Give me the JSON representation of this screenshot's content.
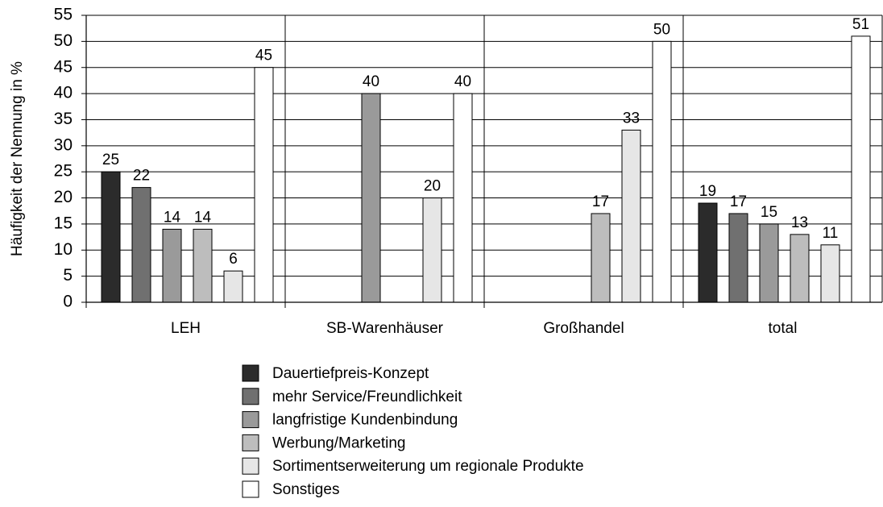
{
  "chart_data": {
    "type": "bar",
    "y_axis_label": "Häufigkeit der Nennung in %",
    "categories": [
      "LEH",
      "SB-Warenhäuser",
      "Großhandel",
      "total"
    ],
    "series": [
      {
        "name": "Dauertiefpreis-Konzept",
        "color": "#2b2b2b",
        "values": [
          25,
          null,
          null,
          19
        ]
      },
      {
        "name": "mehr Service/Freundlichkeit",
        "color": "#707070",
        "values": [
          22,
          null,
          null,
          17
        ]
      },
      {
        "name": "langfristige Kundenbindung",
        "color": "#9a9a9a",
        "values": [
          14,
          40,
          null,
          15
        ]
      },
      {
        "name": "Werbung/Marketing",
        "color": "#bdbdbd",
        "values": [
          14,
          null,
          17,
          13
        ]
      },
      {
        "name": "Sortimentserweiterung um regionale Produkte",
        "color": "#e6e6e6",
        "values": [
          6,
          20,
          33,
          11
        ]
      },
      {
        "name": "Sonstiges",
        "color": "#ffffff",
        "values": [
          45,
          40,
          50,
          51
        ]
      }
    ],
    "ylim": [
      0,
      55
    ],
    "yticks": [
      0,
      5,
      10,
      15,
      20,
      25,
      30,
      35,
      40,
      45,
      50,
      55
    ],
    "grid": true
  }
}
